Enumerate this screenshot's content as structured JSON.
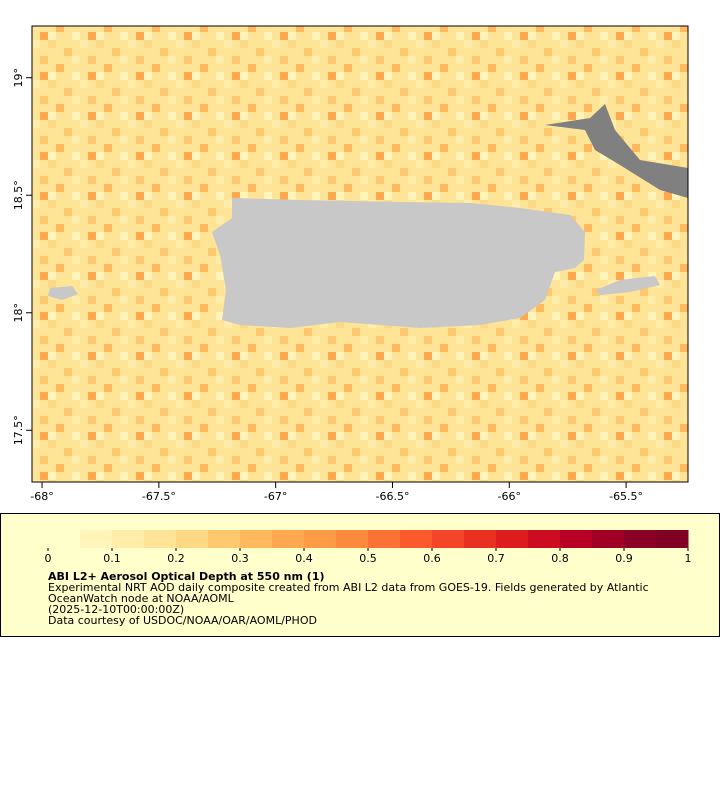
{
  "map": {
    "xlim": [
      -68.043,
      -65.235
    ],
    "ylim": [
      17.28,
      19.22
    ],
    "xticks": [
      {
        "value": -68,
        "label": "-68°"
      },
      {
        "value": -67.5,
        "label": "-67.5°"
      },
      {
        "value": -67,
        "label": "-67°"
      },
      {
        "value": -66.5,
        "label": "-66.5°"
      },
      {
        "value": -66,
        "label": "-66°"
      },
      {
        "value": -65.5,
        "label": "-65.5°"
      }
    ],
    "yticks": [
      {
        "value": 17.5,
        "label": "17.5°"
      },
      {
        "value": 18,
        "label": "18°"
      },
      {
        "value": 18.5,
        "label": "18.5°"
      },
      {
        "value": 19,
        "label": "19°"
      }
    ]
  },
  "colorbar": {
    "lim": [
      0,
      1
    ],
    "ticks": [
      0,
      0.1,
      0.2,
      0.3,
      0.4,
      0.5,
      0.6,
      0.7,
      0.8,
      0.9,
      1
    ],
    "colors": [
      "#ffffcc",
      "#fff5bb",
      "#ffeda9",
      "#fee497",
      "#fed985",
      "#fec86f",
      "#feb85d",
      "#fea94f",
      "#fd9b47",
      "#fd8a3c",
      "#fc7234",
      "#fc5a2d",
      "#f54528",
      "#e93122",
      "#dc1c1e",
      "#cc0c21",
      "#b80026",
      "#a00026",
      "#8a0026",
      "#800026"
    ]
  },
  "caption": {
    "title": "ABI L2+ Aerosol Optical Depth at 550 nm (1)",
    "lines": [
      "Experimental NRT AOD daily composite created from ABI L2 data from GOES-19. Fields generated by Atlantic",
      "OceanWatch node at NOAA/AOML",
      "(2025-12-10T00:00:00Z)",
      "Data courtesy of USDOC/NOAA/OAR/AOML/PHOD"
    ]
  }
}
